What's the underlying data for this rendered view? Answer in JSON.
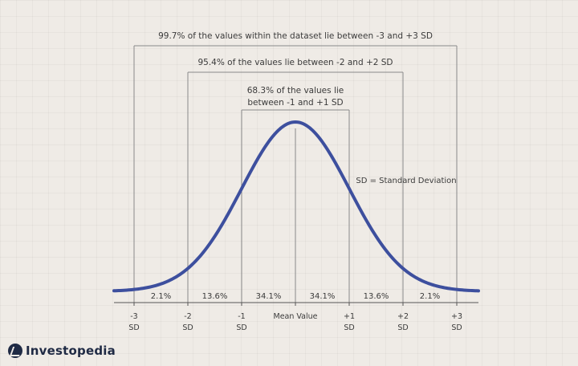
{
  "diagram": {
    "ranges": [
      {
        "from": -3,
        "to": 3,
        "lines": [
          "99.7% of the values within the dataset lie between -3 and +3 SD"
        ]
      },
      {
        "from": -2,
        "to": 2,
        "lines": [
          "95.4% of the values lie between -2 and +2 SD"
        ]
      },
      {
        "from": -1,
        "to": 1,
        "lines": [
          "68.3% of the values lie",
          "between -1 and +1 SD"
        ]
      }
    ],
    "legend_text": "SD = Standard Deviation",
    "segments": [
      {
        "from": -3,
        "to": -2,
        "label": "2.1%"
      },
      {
        "from": -2,
        "to": -1,
        "label": "13.6%"
      },
      {
        "from": -1,
        "to": 0,
        "label": "34.1%"
      },
      {
        "from": 0,
        "to": 1,
        "label": "34.1%"
      },
      {
        "from": 1,
        "to": 2,
        "label": "13.6%"
      },
      {
        "from": 2,
        "to": 3,
        "label": "2.1%"
      }
    ],
    "ticks": [
      {
        "value": -3,
        "lines": [
          "-3",
          "SD"
        ]
      },
      {
        "value": -2,
        "lines": [
          "-2",
          "SD"
        ]
      },
      {
        "value": -1,
        "lines": [
          "-1",
          "SD"
        ]
      },
      {
        "value": 0,
        "lines": [
          "Mean Value"
        ]
      },
      {
        "value": 1,
        "lines": [
          "+1",
          "SD"
        ]
      },
      {
        "value": 2,
        "lines": [
          "+2",
          "SD"
        ]
      },
      {
        "value": 3,
        "lines": [
          "+3",
          "SD"
        ]
      }
    ],
    "curve_color": "#3d4f9e",
    "line_color": "#8a8a8a",
    "text_color": "#3a3a3a"
  },
  "brand": {
    "name": "Investopedia",
    "color": "#1f2a44"
  }
}
